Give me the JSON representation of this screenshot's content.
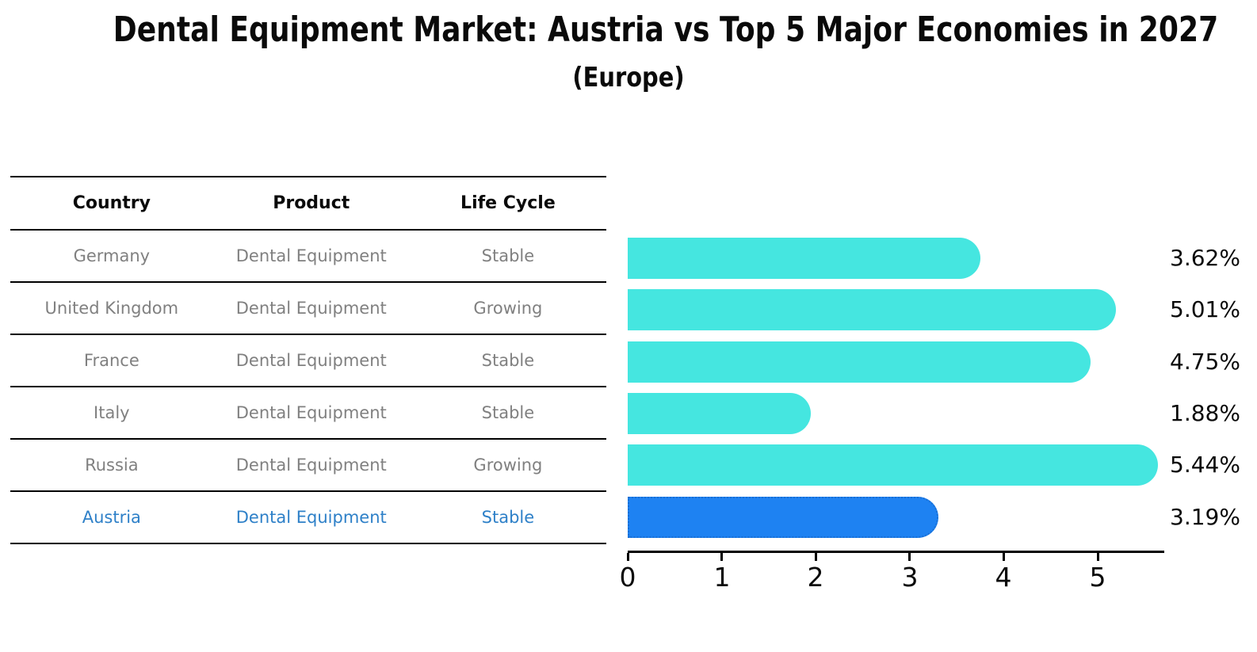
{
  "chart_data": {
    "type": "bar",
    "orientation": "horizontal",
    "title": "Dental Equipment Market: Austria vs Top 5 Major Economies in 2027",
    "subtitle": "(Europe)",
    "categories": [
      "Germany",
      "United Kingdom",
      "France",
      "Italy",
      "Russia",
      "Austria"
    ],
    "values": [
      3.62,
      5.01,
      4.75,
      1.88,
      5.44,
      3.19
    ],
    "value_labels": [
      "3.62%",
      "5.01%",
      "4.75%",
      "1.88%",
      "5.44%",
      "3.19%"
    ],
    "highlight_index": 5,
    "xlim": [
      0,
      5.7
    ],
    "x_ticks": [
      0,
      1,
      2,
      3,
      4,
      5
    ],
    "x_tick_labels": [
      "0",
      "1",
      "2",
      "3",
      "4",
      "5"
    ],
    "grid": false,
    "legend": false
  },
  "table": {
    "columns": [
      "Country",
      "Product",
      "Life Cycle"
    ],
    "rows": [
      {
        "country": "Germany",
        "product": "Dental Equipment",
        "life_cycle": "Stable"
      },
      {
        "country": "United Kingdom",
        "product": "Dental Equipment",
        "life_cycle": "Growing"
      },
      {
        "country": "France",
        "product": "Dental Equipment",
        "life_cycle": "Stable"
      },
      {
        "country": "Italy",
        "product": "Dental Equipment",
        "life_cycle": "Stable"
      },
      {
        "country": "Russia",
        "product": "Dental Equipment",
        "life_cycle": "Growing"
      },
      {
        "country": "Austria",
        "product": "Dental Equipment",
        "life_cycle": "Stable"
      }
    ],
    "highlight_row": 5
  },
  "colors": {
    "bar_default": "#45e6e0",
    "bar_highlight": "#1e82f2",
    "bar_highlight_border": "#1a6fd4",
    "row_text": "#808080",
    "highlight_text": "#2e80c8",
    "axis": "#000000"
  }
}
